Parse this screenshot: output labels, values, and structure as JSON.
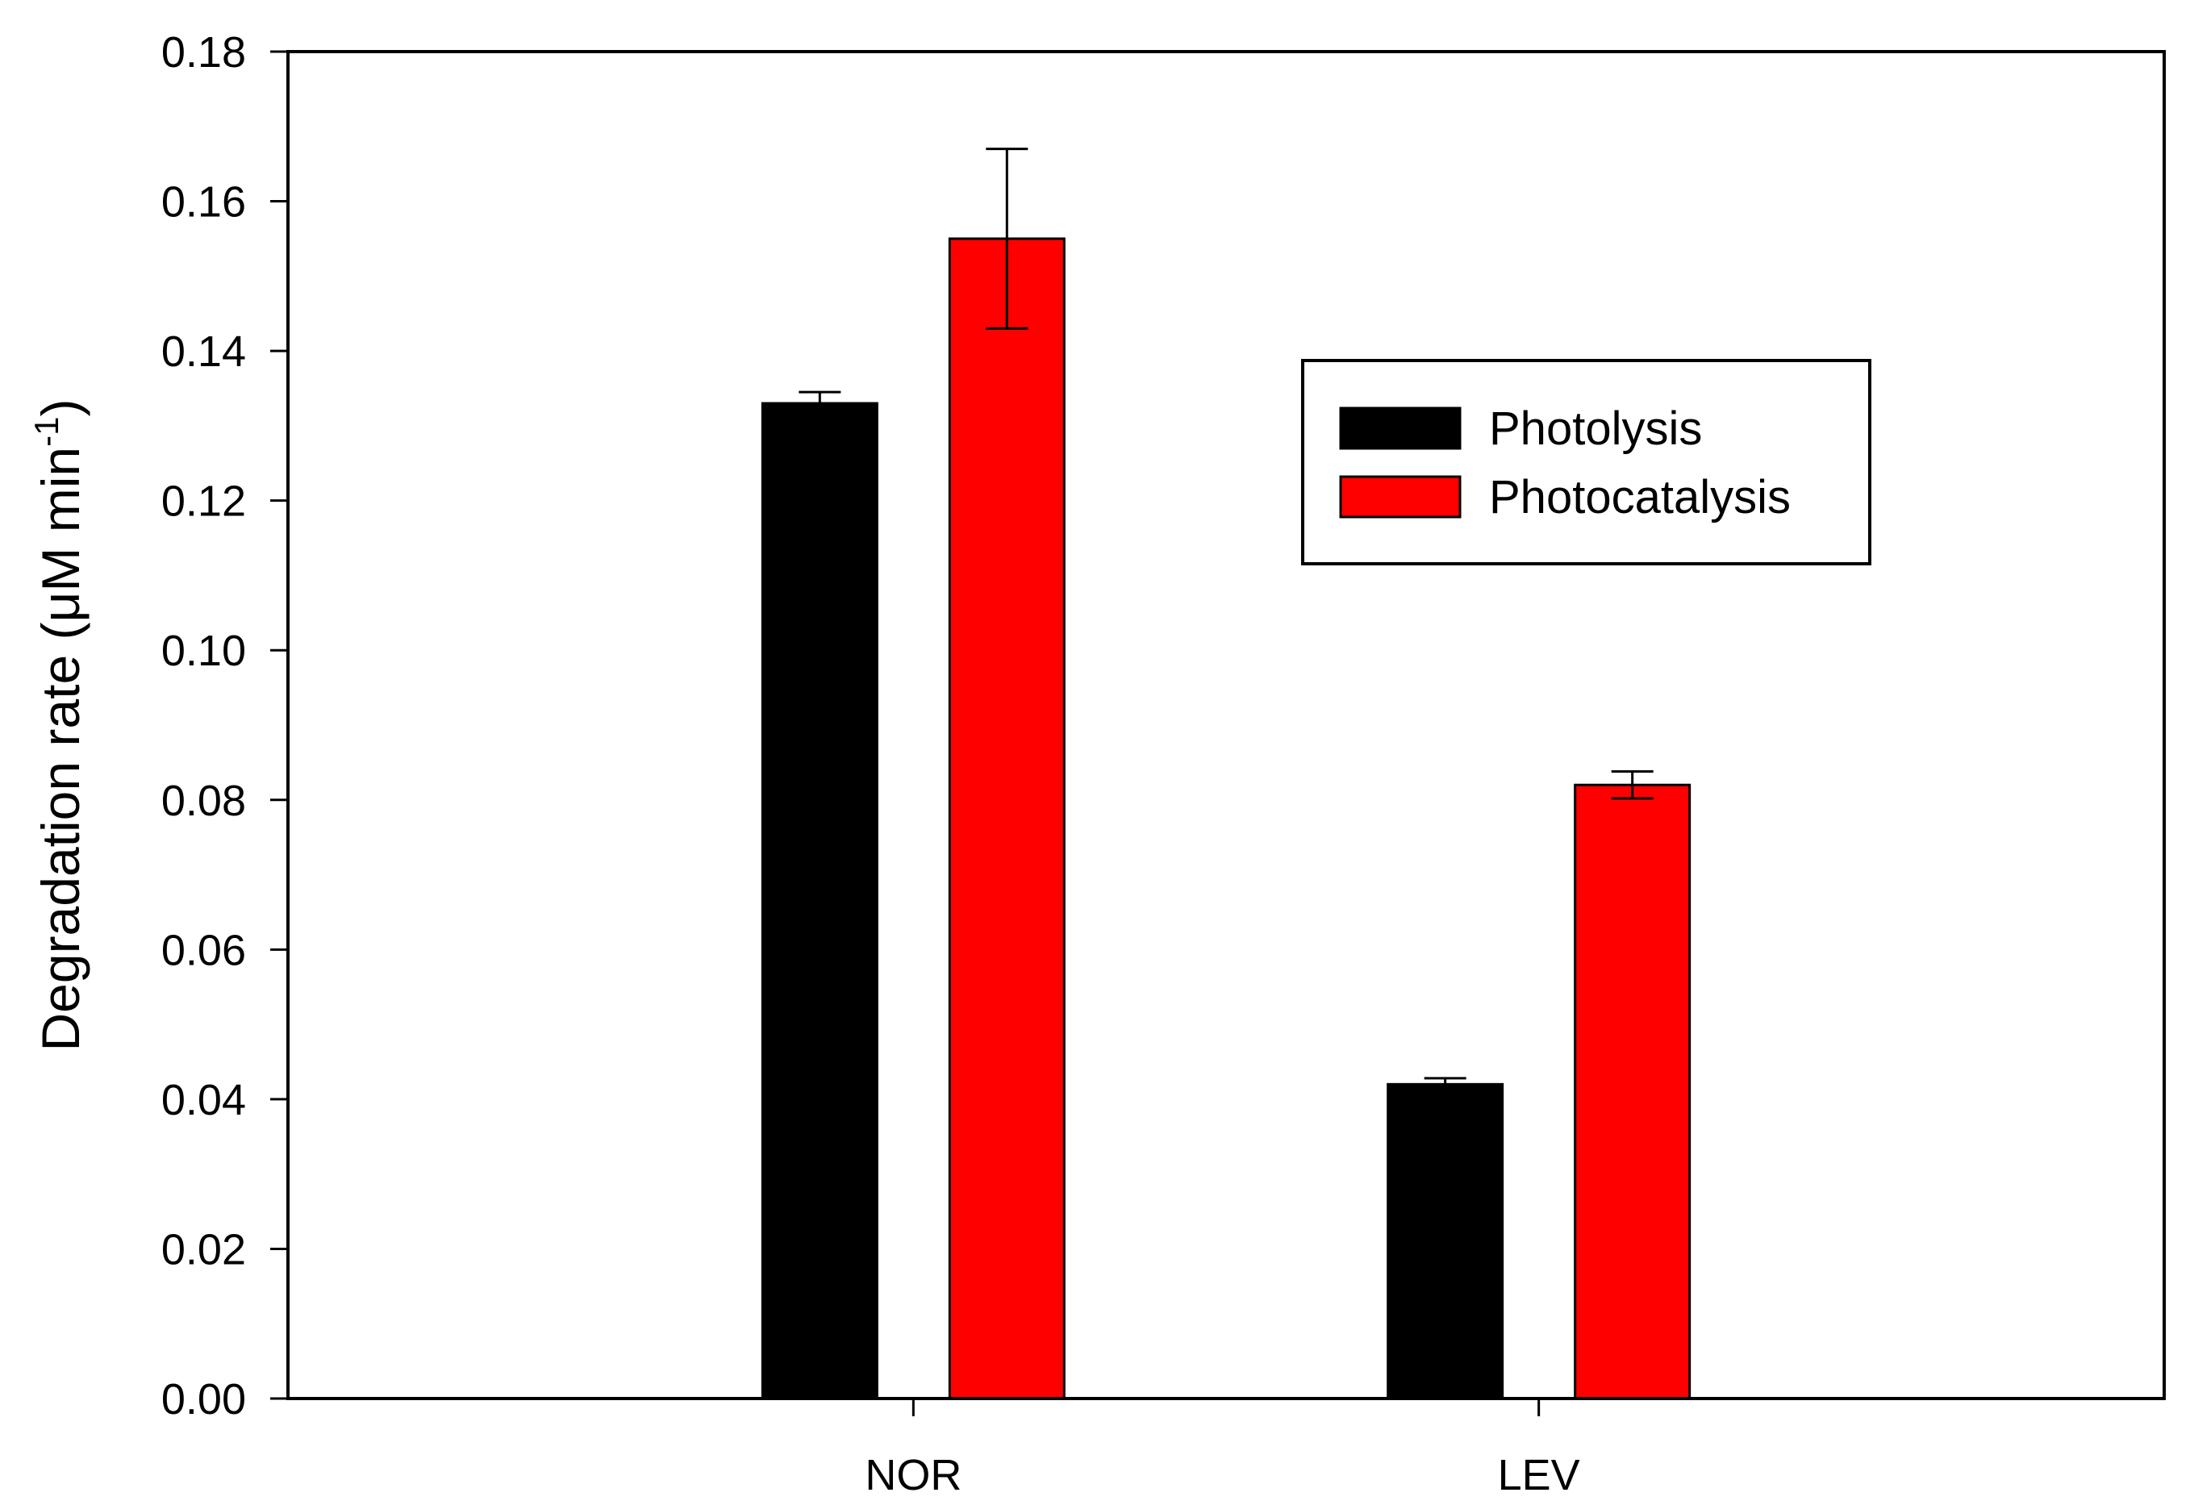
{
  "chart_data": {
    "type": "bar",
    "categories": [
      "NOR",
      "LEV"
    ],
    "series": [
      {
        "name": "Photolysis",
        "values": [
          0.133,
          0.042
        ],
        "errors": [
          0.0015,
          0.0008
        ],
        "color": "#000000"
      },
      {
        "name": "Photocatalysis",
        "values": [
          0.155,
          0.082
        ],
        "errors": [
          0.012,
          0.0018
        ],
        "color": "#ff0000"
      }
    ],
    "ylabel": {
      "main": "Degradation rate (",
      "unit": "μM min",
      "superscript": "-1",
      "close": ")"
    },
    "xlabel": "",
    "ylim": [
      0,
      0.18
    ],
    "yticks": [
      "0.00",
      "0.02",
      "0.04",
      "0.06",
      "0.08",
      "0.10",
      "0.12",
      "0.14",
      "0.16",
      "0.18"
    ],
    "grid": false,
    "legend_position": "upper-right"
  }
}
